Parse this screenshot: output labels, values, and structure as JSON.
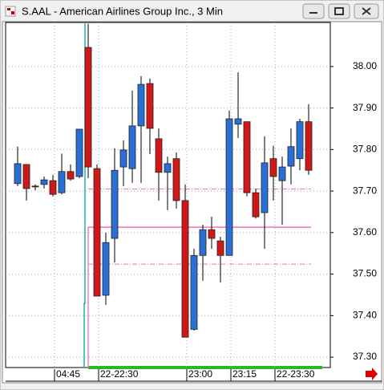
{
  "chart_data": {
    "type": "candlestick",
    "title": "S.AAL - American Airlines Group Inc., 3 Min",
    "categories": [
      null,
      null,
      null,
      null,
      "04:45",
      null,
      null,
      null,
      null,
      "22-22:30",
      null,
      null,
      null,
      null,
      null,
      null,
      null,
      null,
      null,
      "23:00",
      null,
      null,
      null,
      null,
      "23:15",
      null,
      null,
      null,
      null,
      "22-23:30",
      null,
      null,
      null,
      null
    ],
    "open": [
      37.718,
      37.764,
      37.712,
      37.716,
      37.725,
      37.696,
      37.747,
      37.735,
      38.046,
      37.754,
      37.449,
      37.586,
      37.758,
      37.754,
      37.857,
      37.959,
      37.826,
      37.745,
      37.778,
      37.677,
      37.367,
      37.545,
      37.607,
      37.58,
      37.545,
      37.861,
      37.867,
      37.696,
      37.648,
      37.778,
      37.725,
      37.76,
      37.778,
      37.867
    ],
    "high": [
      37.807,
      37.764,
      37.716,
      37.735,
      37.739,
      37.79,
      37.764,
      37.849,
      38.103,
      37.764,
      37.6,
      37.803,
      37.822,
      37.942,
      37.977,
      37.971,
      37.851,
      37.783,
      37.793,
      37.716,
      37.561,
      37.619,
      37.638,
      37.59,
      37.894,
      37.986,
      37.867,
      37.706,
      37.832,
      37.809,
      37.783,
      37.851,
      37.874,
      37.909
    ],
    "low": [
      37.712,
      37.677,
      37.702,
      37.706,
      37.687,
      37.692,
      37.725,
      37.731,
      37.731,
      37.447,
      37.426,
      37.528,
      37.712,
      37.72,
      37.72,
      37.789,
      37.677,
      37.654,
      37.658,
      37.348,
      37.364,
      37.484,
      37.561,
      37.48,
      37.545,
      37.828,
      37.687,
      37.634,
      37.561,
      37.677,
      37.619,
      37.716,
      37.75,
      37.739
    ],
    "close": [
      37.766,
      37.706,
      37.71,
      37.727,
      37.692,
      37.747,
      37.729,
      37.849,
      37.758,
      37.447,
      37.576,
      37.75,
      37.799,
      37.857,
      37.957,
      37.851,
      37.745,
      37.766,
      37.677,
      37.348,
      37.545,
      37.607,
      37.586,
      37.545,
      37.874,
      37.874,
      37.696,
      37.638,
      37.768,
      37.735,
      37.758,
      37.807,
      37.867,
      37.75
    ],
    "up_color": "#2a6fd6",
    "down_color": "#d01818",
    "ylim": [
      37.275,
      38.106
    ],
    "yticks": [
      {
        "value": 37.3,
        "label": "37.30"
      },
      {
        "value": 37.4,
        "label": "37.40"
      },
      {
        "value": 37.5,
        "label": "37.50"
      },
      {
        "value": 37.6,
        "label": "37.60"
      },
      {
        "value": 37.7,
        "label": "37.70"
      },
      {
        "value": 37.8,
        "label": "37.80"
      },
      {
        "value": 37.9,
        "label": "37.90"
      },
      {
        "value": 38.0,
        "label": "38.00"
      }
    ],
    "grid": true,
    "reference_lines": [
      {
        "value": 37.705,
        "style": "dashed"
      },
      {
        "value": 37.613,
        "style": "solid"
      },
      {
        "value": 37.524,
        "style": "dashed"
      }
    ]
  }
}
